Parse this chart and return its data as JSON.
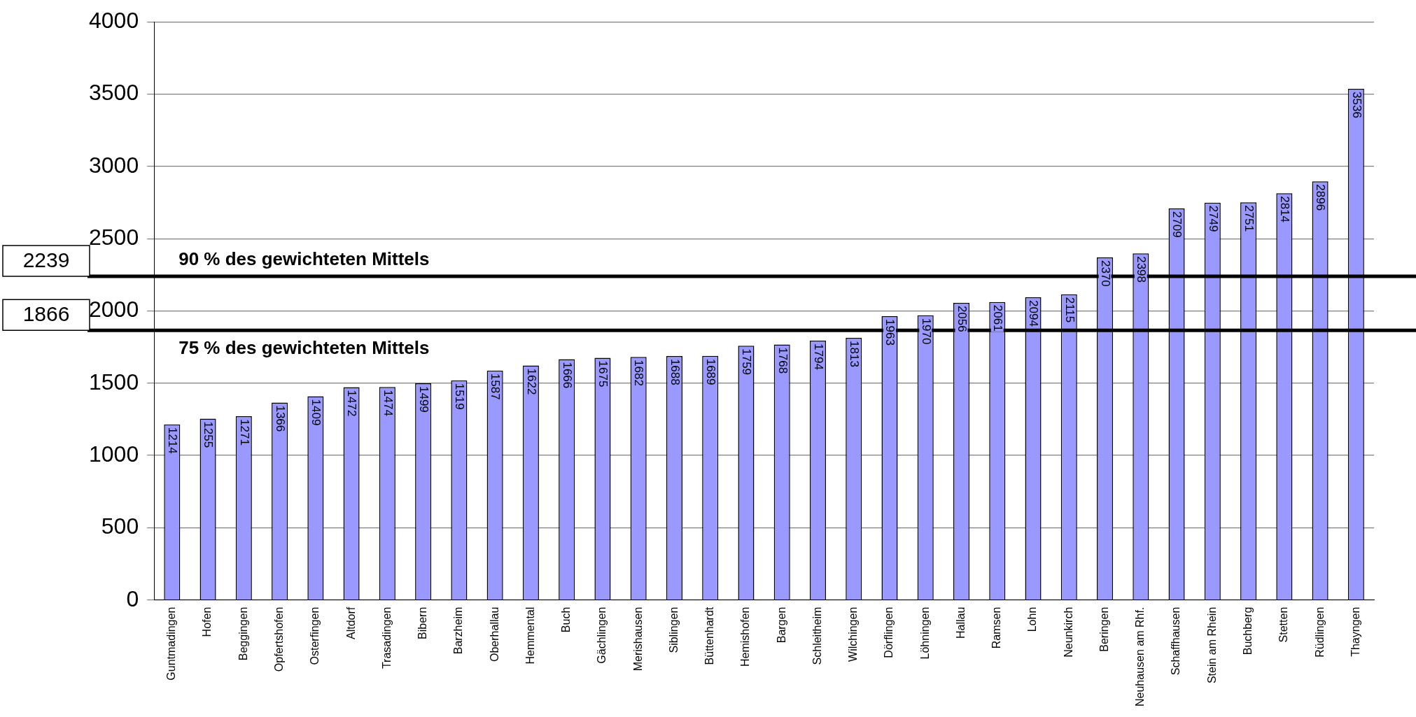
{
  "chart_data": {
    "type": "bar",
    "categories": [
      "Guntmadingen",
      "Hofen",
      "Beggingen",
      "Opfertshofen",
      "Osterfingen",
      "Altdorf",
      "Trasadingen",
      "Bibern",
      "Barzheim",
      "Oberhallau",
      "Hemmental",
      "Buch",
      "Gächlingen",
      "Merishausen",
      "Siblingen",
      "Büttenhardt",
      "Hemishofen",
      "Bargen",
      "Schleitheim",
      "Wilchingen",
      "Dörflingen",
      "Löhningen",
      "Hallau",
      "Ramsen",
      "Lohn",
      "Neunkirch",
      "Beringen",
      "Neuhausen am Rhf.",
      "Schaffhausen",
      "Stein am Rhein",
      "Buchberg",
      "Stetten",
      "Rüdlingen",
      "Thayngen"
    ],
    "values": [
      1214,
      1255,
      1271,
      1366,
      1409,
      1472,
      1474,
      1499,
      1519,
      1587,
      1622,
      1666,
      1675,
      1682,
      1688,
      1689,
      1759,
      1768,
      1794,
      1813,
      1963,
      1970,
      2056,
      2061,
      2094,
      2115,
      2370,
      2398,
      2709,
      2749,
      2751,
      2814,
      2896,
      3536
    ],
    "color": "#9999ff",
    "data_labels": true,
    "ylim": [
      0,
      4000
    ],
    "yticks": [
      0,
      500,
      1000,
      1500,
      2000,
      2500,
      3000,
      3500,
      4000
    ],
    "grid": "y",
    "legend": false,
    "ref_lines": [
      {
        "axis": "y",
        "value": 2239,
        "label": "2239",
        "color": "#000000"
      },
      {
        "axis": "y",
        "value": 1866,
        "label": "1866",
        "color": "#000000"
      }
    ],
    "annotations": [
      {
        "text": "90 % des gewichteten Mittels",
        "y": 2239
      },
      {
        "text": "75 % des gewichteten Mittels",
        "y": 1866
      }
    ]
  }
}
